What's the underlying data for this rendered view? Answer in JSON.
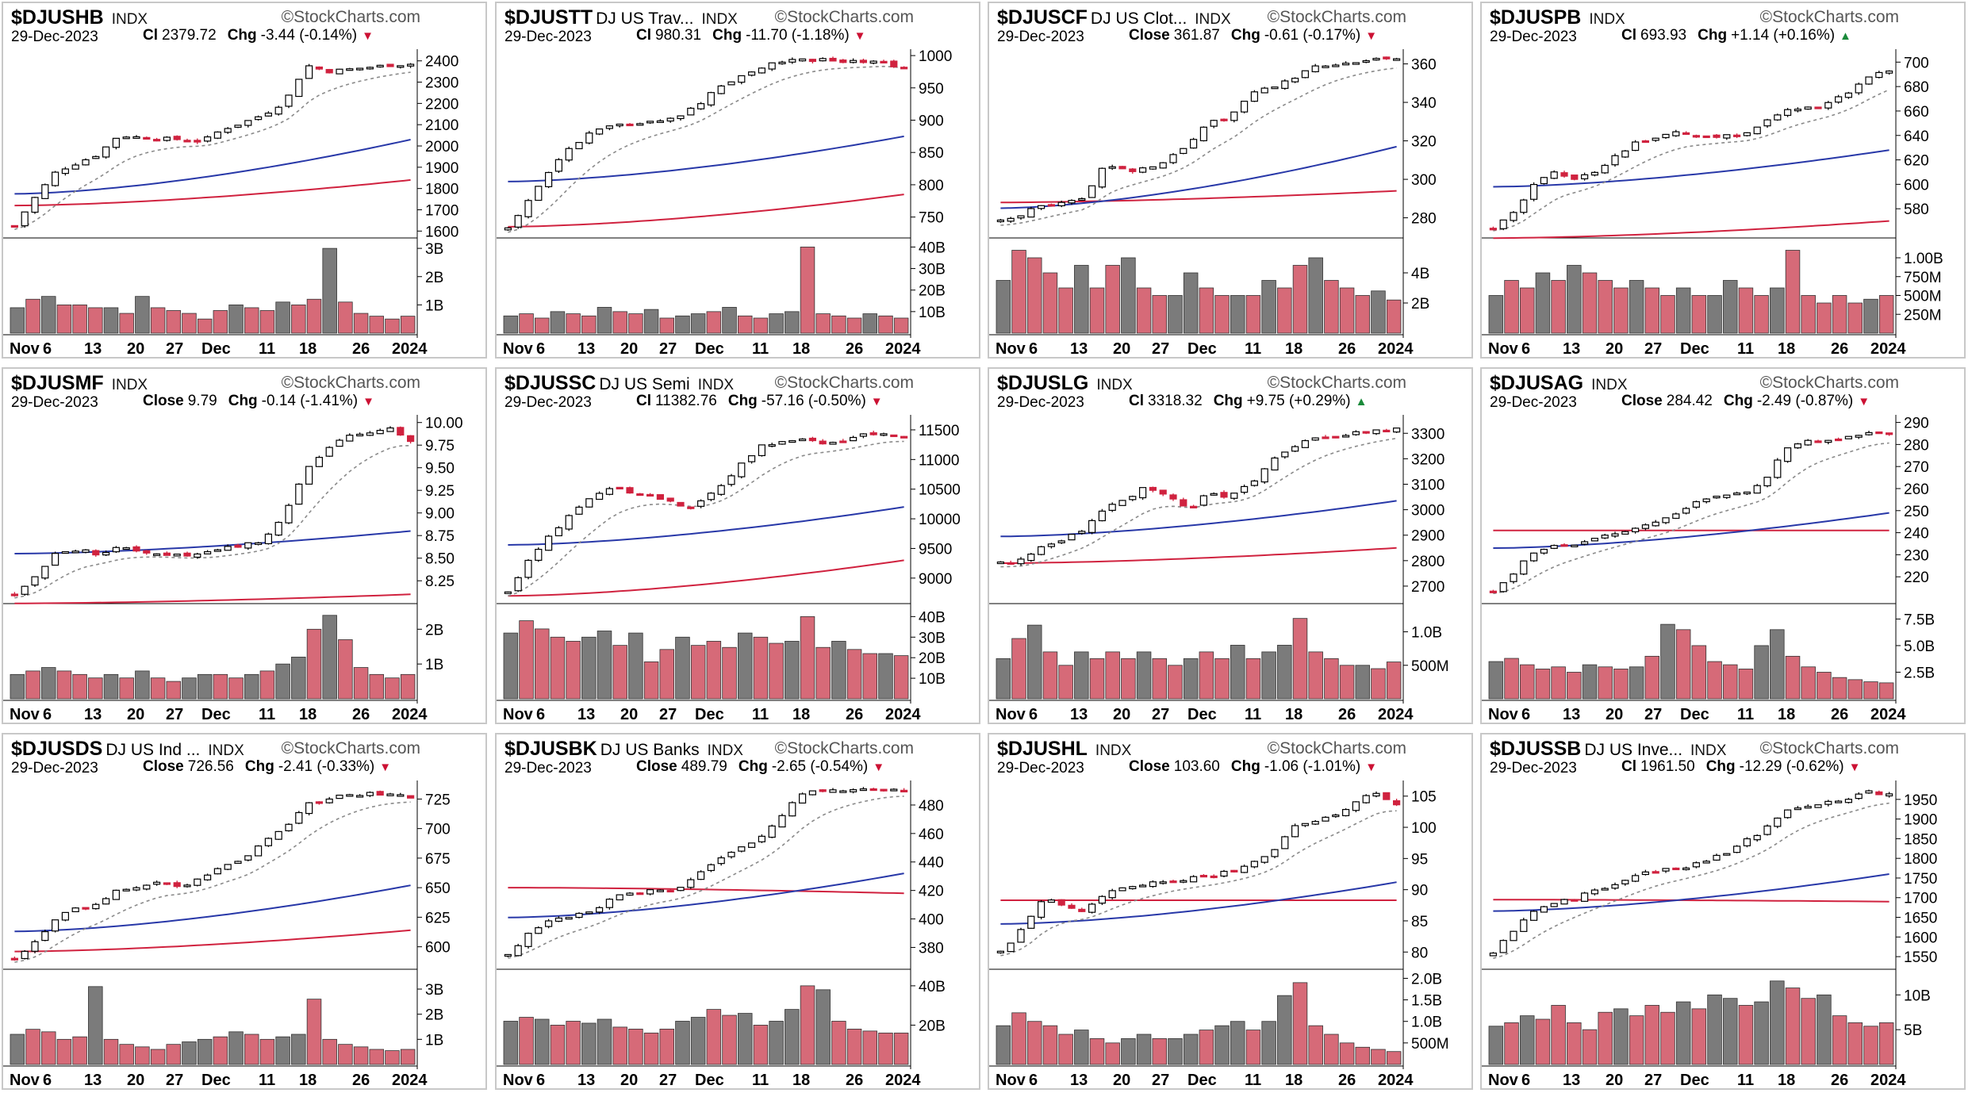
{
  "colors": {
    "up": "#000000",
    "down": "#d0223f",
    "ema": "#8a8a8a",
    "sma50": "#2838a8",
    "sma200": "#d0223f",
    "vol_up": "#7b7b7b",
    "vol_down": "#d66a78",
    "down_marker": "#cc1133",
    "up_marker": "#1a8a3a"
  },
  "x_labels": [
    "Nov",
    "6",
    "13",
    "20",
    "27",
    "Dec",
    "11",
    "18",
    "26",
    "2024"
  ],
  "chart_data": [
    {
      "type": "candlestick",
      "symbol": "$DJUSHB",
      "description": "",
      "exchange": "INDX",
      "source": "©StockCharts.com",
      "date": "29-Dec-2023",
      "close_label": "Cl",
      "close": "2379.72",
      "chg_label": "Chg",
      "chg": "-3.44 (-0.14%)",
      "direction": "down",
      "price_ticks": [
        "2400",
        "2300",
        "2200",
        "2100",
        "2000",
        "1900",
        "1800",
        "1700",
        "1600"
      ],
      "price_range": [
        1590,
        2440
      ],
      "price_path": [
        1625,
        1760,
        1880,
        1920,
        1960,
        2050,
        2040,
        2035,
        2030,
        2020,
        2080,
        2110,
        2150,
        2210,
        2380,
        2350,
        2360,
        2370,
        2380,
        2385
      ],
      "sma50_range": [
        1775,
        2030
      ],
      "sma200_range": [
        1720,
        1840
      ],
      "ema_lag": 3,
      "volume_ticks": [
        "3B",
        "2B",
        "1B"
      ],
      "volume_max": 3.2,
      "volume": [
        0.9,
        1.2,
        1.3,
        1.0,
        1.0,
        0.9,
        0.9,
        0.7,
        1.3,
        0.9,
        0.8,
        0.7,
        0.5,
        0.8,
        1.0,
        0.9,
        0.8,
        1.1,
        1.0,
        1.2,
        3.0,
        1.1,
        0.7,
        0.6,
        0.5,
        0.6
      ]
    },
    {
      "type": "candlestick",
      "symbol": "$DJUSTT",
      "description": "DJ US Trav...",
      "exchange": "INDX",
      "source": "©StockCharts.com",
      "date": "29-Dec-2023",
      "close_label": "Cl",
      "close": "980.31",
      "chg_label": "Chg",
      "chg": "-11.70 (-1.18%)",
      "direction": "down",
      "price_ticks": [
        "1000",
        "950",
        "900",
        "850",
        "800",
        "750"
      ],
      "price_range": [
        725,
        1005
      ],
      "price_path": [
        732,
        775,
        820,
        860,
        880,
        890,
        895,
        900,
        905,
        920,
        950,
        965,
        980,
        990,
        992,
        993,
        990,
        990,
        991,
        980
      ],
      "sma50_range": [
        805,
        875
      ],
      "sma200_range": [
        735,
        785
      ],
      "ema_lag": 3,
      "volume_ticks": [
        "40B",
        "30B",
        "20B",
        "10B"
      ],
      "volume_max": 42,
      "volume": [
        8,
        9,
        7,
        10,
        9,
        8,
        12,
        10,
        9,
        11,
        7,
        8,
        9,
        10,
        12,
        8,
        7,
        9,
        10,
        40,
        9,
        8,
        7,
        9,
        8,
        7
      ]
    },
    {
      "type": "candlestick",
      "symbol": "$DJUSCF",
      "description": "DJ US Clot...",
      "exchange": "INDX",
      "source": "©StockCharts.com",
      "date": "29-Dec-2023",
      "close_label": "Close",
      "close": "361.87",
      "chg_label": "Chg",
      "chg": "-0.61 (-0.17%)",
      "direction": "down",
      "price_ticks": [
        "360",
        "340",
        "320",
        "300",
        "280"
      ],
      "price_range": [
        272,
        366
      ],
      "price_path": [
        278,
        282,
        286,
        288,
        290,
        308,
        304,
        306,
        310,
        318,
        330,
        332,
        345,
        348,
        352,
        358,
        360,
        361,
        362,
        362
      ],
      "sma50_range": [
        285,
        317
      ],
      "sma200_range": [
        288,
        294
      ],
      "ema_lag": 3,
      "volume_ticks": [
        "4B",
        "2B"
      ],
      "volume_max": 6.0,
      "volume": [
        3.5,
        5.5,
        5.0,
        4.0,
        3.0,
        4.5,
        3.0,
        4.5,
        5.0,
        3.0,
        2.5,
        2.5,
        4.0,
        3.0,
        2.5,
        2.5,
        2.5,
        3.5,
        3.0,
        4.5,
        5.0,
        3.5,
        3.0,
        2.5,
        2.8,
        2.2
      ]
    },
    {
      "type": "candlestick",
      "symbol": "$DJUSPB",
      "description": "",
      "exchange": "INDX",
      "source": "©StockCharts.com",
      "date": "29-Dec-2023",
      "close_label": "Cl",
      "close": "693.93",
      "chg_label": "Chg",
      "chg": "+1.14 (+0.16%)",
      "direction": "up",
      "price_ticks": [
        "700",
        "680",
        "660",
        "640",
        "620",
        "600",
        "580"
      ],
      "price_range": [
        560,
        708
      ],
      "price_path": [
        565,
        578,
        600,
        610,
        604,
        612,
        625,
        635,
        640,
        642,
        638,
        640,
        640,
        650,
        660,
        662,
        665,
        675,
        688,
        694
      ],
      "sma50_range": [
        598,
        628
      ],
      "sma200_range": [
        556,
        570
      ],
      "ema_lag": 3,
      "volume_ticks": [
        "1.00B",
        "750M",
        "500M",
        "250M"
      ],
      "volume_max": 1.2,
      "volume": [
        0.5,
        0.7,
        0.6,
        0.8,
        0.7,
        0.9,
        0.8,
        0.7,
        0.6,
        0.7,
        0.6,
        0.5,
        0.6,
        0.5,
        0.5,
        0.7,
        0.6,
        0.5,
        0.6,
        1.1,
        0.5,
        0.4,
        0.5,
        0.4,
        0.45,
        0.5
      ]
    },
    {
      "type": "candlestick",
      "symbol": "$DJUSMF",
      "description": "",
      "exchange": "INDX",
      "source": "©StockCharts.com",
      "date": "29-Dec-2023",
      "close_label": "Close",
      "close": "9.79",
      "chg_label": "Chg",
      "chg": "-0.14 (-1.41%)",
      "direction": "down",
      "price_ticks": [
        "10.00",
        "9.75",
        "9.50",
        "9.25",
        "9.00",
        "8.75",
        "8.50",
        "8.25"
      ],
      "price_range": [
        8.05,
        10.05
      ],
      "price_path": [
        8.1,
        8.3,
        8.55,
        8.6,
        8.55,
        8.62,
        8.58,
        8.55,
        8.52,
        8.55,
        8.6,
        8.65,
        8.7,
        9.0,
        9.5,
        9.7,
        9.85,
        9.9,
        9.93,
        9.8
      ],
      "sma50_range": [
        8.55,
        8.8
      ],
      "sma200_range": [
        8.0,
        8.1
      ],
      "ema_lag": 3,
      "volume_ticks": [
        "2B",
        "1B"
      ],
      "volume_max": 2.6,
      "volume": [
        0.7,
        0.8,
        0.9,
        0.8,
        0.7,
        0.6,
        0.7,
        0.6,
        0.8,
        0.6,
        0.5,
        0.6,
        0.7,
        0.7,
        0.6,
        0.7,
        0.8,
        1.0,
        1.2,
        2.0,
        2.4,
        1.7,
        0.9,
        0.7,
        0.6,
        0.7
      ]
    },
    {
      "type": "candlestick",
      "symbol": "$DJUSSC",
      "description": "DJ US Semi",
      "exchange": "INDX",
      "source": "©StockCharts.com",
      "date": "29-Dec-2023",
      "close_label": "Cl",
      "close": "11382.76",
      "chg_label": "Chg",
      "chg": "-57.16 (-0.50%)",
      "direction": "down",
      "price_ticks": [
        "11500",
        "11000",
        "10500",
        "10000",
        "9500",
        "9000"
      ],
      "price_range": [
        8650,
        11700
      ],
      "price_path": [
        8760,
        9300,
        9700,
        10100,
        10350,
        10550,
        10450,
        10380,
        10250,
        10200,
        10500,
        10850,
        11200,
        11300,
        11350,
        11250,
        11300,
        11400,
        11450,
        11383
      ],
      "sma50_range": [
        9560,
        10200
      ],
      "sma200_range": [
        8700,
        9300
      ],
      "ema_lag": 3,
      "volume_ticks": [
        "40B",
        "30B",
        "20B",
        "10B"
      ],
      "volume_max": 44,
      "volume": [
        32,
        38,
        34,
        30,
        28,
        30,
        33,
        26,
        32,
        18,
        24,
        30,
        26,
        28,
        25,
        32,
        30,
        27,
        28,
        40,
        25,
        28,
        24,
        22,
        22,
        21
      ]
    },
    {
      "type": "candlestick",
      "symbol": "$DJUSLG",
      "description": "",
      "exchange": "INDX",
      "source": "©StockCharts.com",
      "date": "29-Dec-2023",
      "close_label": "Cl",
      "close": "3318.32",
      "chg_label": "Chg",
      "chg": "+9.75 (+0.29%)",
      "direction": "up",
      "price_ticks": [
        "3300",
        "3200",
        "3100",
        "3000",
        "2900",
        "2800",
        "2700"
      ],
      "price_range": [
        2650,
        3360
      ],
      "price_path": [
        2790,
        2800,
        2850,
        2880,
        2920,
        3000,
        3040,
        3090,
        3050,
        3000,
        3070,
        3050,
        3100,
        3200,
        3250,
        3280,
        3290,
        3300,
        3310,
        3318
      ],
      "sma50_range": [
        2895,
        3035
      ],
      "sma200_range": [
        2790,
        2850
      ],
      "ema_lag": 3,
      "volume_ticks": [
        "1.0B",
        "500M"
      ],
      "volume_max": 1.35,
      "volume": [
        0.6,
        0.9,
        1.1,
        0.7,
        0.5,
        0.7,
        0.6,
        0.7,
        0.6,
        0.7,
        0.6,
        0.5,
        0.6,
        0.7,
        0.6,
        0.8,
        0.6,
        0.7,
        0.8,
        1.2,
        0.7,
        0.6,
        0.5,
        0.5,
        0.45,
        0.55
      ]
    },
    {
      "type": "candlestick",
      "symbol": "$DJUSAG",
      "description": "",
      "exchange": "INDX",
      "source": "©StockCharts.com",
      "date": "29-Dec-2023",
      "close_label": "Close",
      "close": "284.42",
      "chg_label": "Chg",
      "chg": "-2.49 (-0.87%)",
      "direction": "down",
      "price_ticks": [
        "290",
        "280",
        "270",
        "260",
        "250",
        "240",
        "230",
        "220"
      ],
      "price_range": [
        210,
        292
      ],
      "price_path": [
        214,
        222,
        232,
        234,
        235,
        238,
        240,
        243,
        245,
        250,
        255,
        256,
        258,
        262,
        278,
        282,
        281,
        283,
        286,
        284
      ],
      "sma50_range": [
        233,
        249
      ],
      "sma200_range": [
        241,
        241
      ],
      "ema_lag": 3,
      "volume_ticks": [
        "7.5B",
        "5.0B",
        "2.5B"
      ],
      "volume_max": 8.5,
      "volume": [
        3.5,
        3.8,
        3.2,
        2.8,
        3.0,
        2.5,
        3.2,
        3.0,
        2.8,
        3.0,
        4.0,
        7.0,
        6.5,
        5.0,
        3.5,
        3.2,
        2.8,
        5.0,
        6.5,
        4.0,
        3.0,
        2.5,
        2.0,
        1.8,
        1.6,
        1.5
      ]
    },
    {
      "type": "candlestick",
      "symbol": "$DJUSDS",
      "description": "DJ US Ind ...",
      "exchange": "INDX",
      "source": "©StockCharts.com",
      "date": "29-Dec-2023",
      "close_label": "Close",
      "close": "726.56",
      "chg_label": "Chg",
      "chg": "-2.41 (-0.33%)",
      "direction": "down",
      "price_ticks": [
        "725",
        "700",
        "675",
        "650",
        "625",
        "600"
      ],
      "price_range": [
        585,
        738
      ],
      "price_path": [
        590,
        605,
        625,
        632,
        635,
        648,
        652,
        655,
        650,
        658,
        668,
        672,
        690,
        700,
        720,
        725,
        728,
        730,
        729,
        727
      ],
      "sma50_range": [
        613,
        652
      ],
      "sma200_range": [
        596,
        614
      ],
      "ema_lag": 3,
      "volume_ticks": [
        "3B",
        "2B",
        "1B"
      ],
      "volume_max": 3.6,
      "volume": [
        1.2,
        1.4,
        1.3,
        1.0,
        1.1,
        3.1,
        1.0,
        0.8,
        0.7,
        0.6,
        0.8,
        0.9,
        1.0,
        1.1,
        1.3,
        1.2,
        1.0,
        1.1,
        1.2,
        2.6,
        1.0,
        0.8,
        0.7,
        0.6,
        0.55,
        0.6
      ]
    },
    {
      "type": "candlestick",
      "symbol": "$DJUSBK",
      "description": "DJ US Banks",
      "exchange": "INDX",
      "source": "©StockCharts.com",
      "date": "29-Dec-2023",
      "close_label": "Close",
      "close": "489.79",
      "chg_label": "Chg",
      "chg": "-2.65 (-0.54%)",
      "direction": "down",
      "price_ticks": [
        "480",
        "460",
        "440",
        "420",
        "400",
        "380"
      ],
      "price_range": [
        368,
        495
      ],
      "price_path": [
        375,
        390,
        400,
        402,
        405,
        415,
        418,
        420,
        420,
        430,
        440,
        448,
        455,
        470,
        488,
        490,
        490,
        491,
        492,
        490
      ],
      "sma50_range": [
        401,
        432
      ],
      "sma200_range": [
        422,
        418
      ],
      "ema_lag": 3,
      "volume_ticks": [
        "40B",
        "20B"
      ],
      "volume_max": 46,
      "volume": [
        22,
        24,
        23,
        20,
        22,
        21,
        23,
        19,
        18,
        16,
        18,
        22,
        24,
        28,
        25,
        26,
        20,
        22,
        28,
        40,
        38,
        22,
        18,
        17,
        16,
        16
      ]
    },
    {
      "type": "candlestick",
      "symbol": "$DJUSHL",
      "description": "",
      "exchange": "INDX",
      "source": "©StockCharts.com",
      "date": "29-Dec-2023",
      "close_label": "Close",
      "close": "103.60",
      "chg_label": "Chg",
      "chg": "-1.06 (-1.01%)",
      "direction": "down",
      "price_ticks": [
        "105",
        "100",
        "95",
        "90",
        "85",
        "80"
      ],
      "price_range": [
        78,
        107
      ],
      "price_path": [
        80,
        83.5,
        88.5,
        87.5,
        86.5,
        89.5,
        90.5,
        91,
        91.5,
        91.8,
        92,
        93,
        94,
        96,
        100,
        101,
        102,
        104,
        105.5,
        103.6
      ],
      "sma50_range": [
        84.5,
        91.2
      ],
      "sma200_range": [
        88.3,
        88.3
      ],
      "ema_lag": 3,
      "volume_ticks": [
        "2.0B",
        "1.5B",
        "1.0B",
        "500M"
      ],
      "volume_max": 2.1,
      "volume": [
        0.9,
        1.2,
        1.0,
        0.9,
        0.7,
        0.8,
        0.6,
        0.5,
        0.6,
        0.7,
        0.6,
        0.6,
        0.7,
        0.8,
        0.9,
        1.0,
        0.8,
        1.0,
        1.6,
        1.9,
        0.9,
        0.7,
        0.5,
        0.4,
        0.35,
        0.3
      ]
    },
    {
      "type": "candlestick",
      "symbol": "$DJUSSB",
      "description": "DJ US Inve...",
      "exchange": "INDX",
      "source": "©StockCharts.com",
      "date": "29-Dec-2023",
      "close_label": "Cl",
      "close": "1961.50",
      "chg_label": "Chg",
      "chg": "-12.29 (-0.62%)",
      "direction": "down",
      "price_ticks": [
        "1950",
        "1900",
        "1850",
        "1800",
        "1750",
        "1700",
        "1650",
        "1600",
        "1550"
      ],
      "price_range": [
        1530,
        1990
      ],
      "price_path": [
        1555,
        1620,
        1670,
        1685,
        1700,
        1720,
        1740,
        1760,
        1770,
        1775,
        1790,
        1810,
        1840,
        1870,
        1925,
        1935,
        1940,
        1950,
        1968,
        1962
      ],
      "sma50_range": [
        1666,
        1760
      ],
      "sma200_range": [
        1695,
        1690
      ],
      "ema_lag": 3,
      "volume_ticks": [
        "10B",
        "5B"
      ],
      "volume_max": 13,
      "volume": [
        5.5,
        6.0,
        7.0,
        6.5,
        8.5,
        6.0,
        5.0,
        7.5,
        8.0,
        7.0,
        8.5,
        7.5,
        9.0,
        8.0,
        10.0,
        9.5,
        8.5,
        9.0,
        12.0,
        11.0,
        9.5,
        10.0,
        7.0,
        6.0,
        5.5,
        6.0
      ]
    }
  ]
}
